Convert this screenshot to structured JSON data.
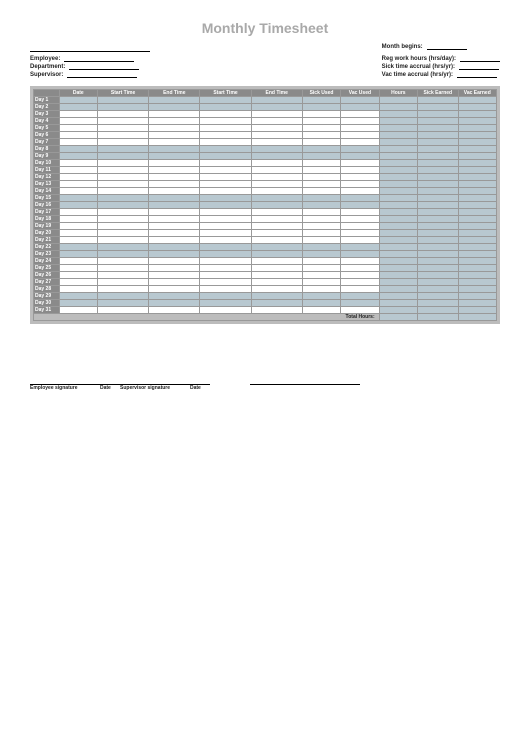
{
  "title": "Monthly Timesheet",
  "left_fields": {
    "employee": "Employee:",
    "department": "Department:",
    "supervisor": "Supervisor:"
  },
  "right_fields": {
    "month_begins": "Month begins:",
    "reg_hours": "Reg work hours (hrs/day):",
    "sick_accrual": "Sick time accrual (hrs/yr):",
    "vac_accrual": "Vac time accrual (hrs/yr):"
  },
  "columns": [
    "Date",
    "Start Time",
    "End Time",
    "Start Time",
    "End Time",
    "Sick Used",
    "Vac Used",
    "Hours",
    "Sick Earned",
    "Vac Earned"
  ],
  "day_prefix": "Day",
  "weekend_rows": [
    1,
    2,
    8,
    9,
    10,
    11,
    12,
    13,
    14,
    15,
    16,
    17,
    18,
    19,
    20,
    21,
    22,
    23,
    24,
    25,
    26,
    27,
    28,
    29,
    30,
    31
  ],
  "weekend_set": [
    1,
    2,
    8,
    9,
    15,
    16,
    22,
    23,
    29,
    30
  ],
  "total_label": "Total Hours:",
  "signatures": {
    "emp_sig": "Employee signature",
    "date1": "Date",
    "sup_sig": "Supervisor signature",
    "date2": "Date"
  }
}
